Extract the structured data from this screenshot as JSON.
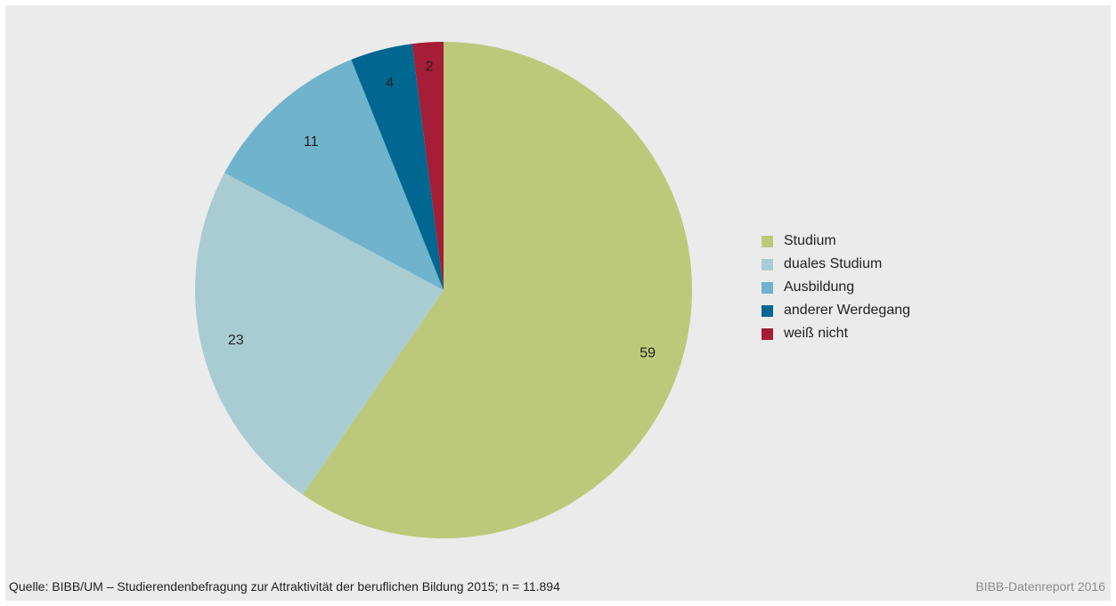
{
  "chart_data": {
    "type": "pie",
    "title": "",
    "start_angle_deg": 0,
    "direction": "clockwise",
    "series": [
      {
        "values": [
          59,
          23,
          11,
          4,
          2
        ]
      }
    ],
    "categories": [
      "Studium",
      "duales Studium",
      "Ausbildung",
      "anderer Werdegang",
      "weiß nicht"
    ],
    "data_labels": [
      "59",
      "23",
      "11",
      "4",
      "2"
    ],
    "colors": [
      "#bcc97a",
      "#a9ccd3",
      "#6fb3cd",
      "#006791",
      "#a51d36"
    ],
    "label_colors": [
      "#222222",
      "#222222",
      "#222222",
      "#ffffff",
      "#ffffff"
    ],
    "legend_position": "right"
  },
  "legend": {
    "items": [
      {
        "label": "Studium",
        "color": "#bcc97a"
      },
      {
        "label": "duales Studium",
        "color": "#a9ccd3"
      },
      {
        "label": "Ausbildung",
        "color": "#6fb3cd"
      },
      {
        "label": "anderer Werdegang",
        "color": "#006791"
      },
      {
        "label": "weiß nicht",
        "color": "#a51d36"
      }
    ]
  },
  "footer": {
    "source": "Quelle: BIBB/UM – Studierendenbefragung zur Attraktivität der beruflichen Bildung 2015; n = 11.894",
    "credit": "BIBB-Datenreport 2016"
  },
  "colors": {
    "background": "#ebebeb",
    "text": "#222222",
    "credit_text": "#8c8c8c"
  }
}
